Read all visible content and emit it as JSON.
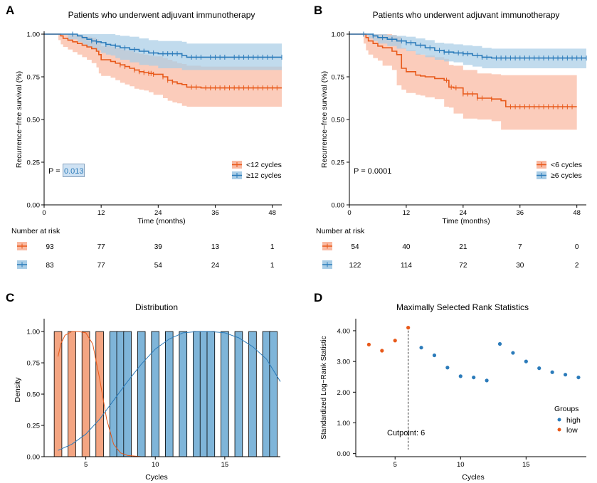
{
  "colors": {
    "orange": "#e8591a",
    "blue": "#2b7bba",
    "orange_band": "#f9b9a1",
    "blue_band": "#a9cde6",
    "overlap_band": "#b7aeb0",
    "orange_bar": "#f4a582",
    "blue_bar": "#7fb5d9",
    "axis": "#000000",
    "highlight_box": "#cfe2f3"
  },
  "chart_data": [
    {
      "id": "A",
      "panel_letter": "A",
      "type": "line",
      "subtype": "kaplan-meier",
      "title": "Patients who underwent adjuvant immunotherapy",
      "xlabel": "Time (months)",
      "ylabel": "Recurrence−free survival (%)",
      "xlim": [
        0,
        50
      ],
      "ylim": [
        0,
        1
      ],
      "xticks": [
        0,
        12,
        24,
        36,
        48
      ],
      "xtick_labels": [
        "0",
        "12",
        "24",
        "36",
        "48"
      ],
      "yticks": [
        0,
        0.25,
        0.5,
        0.75,
        1
      ],
      "ytick_labels": [
        "0.00",
        "0.25",
        "0.50",
        "0.75",
        "1.00"
      ],
      "p_label": "P = ",
      "p_value": "0.013",
      "legend": [
        {
          "label": "<12 cycles",
          "color": "orange"
        },
        {
          "label": "≥12 cycles",
          "color": "blue"
        }
      ],
      "series": [
        {
          "name": "<12 cycles",
          "color": "orange",
          "band": "orange_band",
          "x": [
            0,
            3,
            3.5,
            4,
            5,
            6,
            7,
            8,
            9,
            10,
            11,
            11.5,
            12,
            14,
            15,
            16,
            17,
            18,
            19,
            20,
            21,
            22,
            23,
            25,
            26,
            27,
            28,
            29,
            30,
            33,
            50
          ],
          "y": [
            1,
            1,
            0.99,
            0.975,
            0.965,
            0.955,
            0.945,
            0.935,
            0.925,
            0.915,
            0.9,
            0.88,
            0.85,
            0.84,
            0.83,
            0.82,
            0.81,
            0.8,
            0.79,
            0.78,
            0.775,
            0.77,
            0.765,
            0.75,
            0.73,
            0.72,
            0.71,
            0.705,
            0.69,
            0.685,
            0.685
          ],
          "lower": [
            1,
            1,
            0.965,
            0.94,
            0.925,
            0.91,
            0.895,
            0.88,
            0.865,
            0.85,
            0.83,
            0.805,
            0.77,
            0.755,
            0.745,
            0.73,
            0.715,
            0.705,
            0.695,
            0.68,
            0.675,
            0.67,
            0.66,
            0.645,
            0.625,
            0.61,
            0.6,
            0.595,
            0.58,
            0.575,
            0.575
          ],
          "upper": [
            1,
            1,
            1,
            1,
            1,
            1,
            0.995,
            0.99,
            0.985,
            0.98,
            0.97,
            0.955,
            0.93,
            0.925,
            0.92,
            0.91,
            0.905,
            0.9,
            0.89,
            0.885,
            0.88,
            0.875,
            0.87,
            0.86,
            0.85,
            0.84,
            0.83,
            0.825,
            0.815,
            0.81,
            0.81
          ],
          "censor_x": [
            16,
            17,
            19,
            20,
            21,
            22,
            22.5,
            23,
            25,
            26,
            27,
            31,
            32,
            34,
            35,
            36,
            37,
            38,
            39,
            40,
            41,
            42,
            43,
            44,
            45,
            46,
            47,
            48,
            49
          ]
        },
        {
          "name": "≥12 cycles",
          "color": "blue",
          "band": "blue_band",
          "x": [
            0,
            5,
            7,
            8,
            9,
            10,
            11,
            12,
            13,
            14,
            15,
            16,
            18,
            20,
            22,
            24,
            29,
            30,
            50
          ],
          "y": [
            1,
            1,
            0.99,
            0.98,
            0.97,
            0.96,
            0.955,
            0.95,
            0.94,
            0.935,
            0.93,
            0.92,
            0.91,
            0.9,
            0.89,
            0.885,
            0.875,
            0.865,
            0.865
          ],
          "lower": [
            1,
            1,
            0.97,
            0.955,
            0.94,
            0.925,
            0.915,
            0.905,
            0.89,
            0.88,
            0.875,
            0.86,
            0.85,
            0.835,
            0.82,
            0.815,
            0.8,
            0.79,
            0.79
          ],
          "upper": [
            1,
            1,
            1,
            1,
            1,
            1,
            1,
            1,
            1,
            1,
            0.995,
            0.99,
            0.985,
            0.975,
            0.965,
            0.96,
            0.955,
            0.945,
            0.945
          ],
          "censor_x": [
            6,
            10,
            11,
            13,
            15,
            17,
            19,
            21,
            23,
            25,
            26,
            27,
            28,
            29,
            31,
            32,
            33,
            35,
            36,
            37,
            38,
            40,
            41,
            42,
            43,
            44,
            45,
            46,
            47,
            48,
            50
          ]
        }
      ],
      "risk_table": {
        "title": "Number at risk",
        "times": [
          0,
          12,
          24,
          36,
          48
        ],
        "rows": [
          {
            "color": "orange",
            "values": [
              "93",
              "77",
              "39",
              "13",
              "1"
            ]
          },
          {
            "color": "blue",
            "values": [
              "83",
              "77",
              "54",
              "24",
              "1"
            ]
          }
        ]
      }
    },
    {
      "id": "B",
      "panel_letter": "B",
      "type": "line",
      "subtype": "kaplan-meier",
      "title": "Patients who underwent adjuvant immunotherapy",
      "xlabel": "Time (months)",
      "ylabel": "Recurrence−free survival (%)",
      "xlim": [
        0,
        50
      ],
      "ylim": [
        0,
        1
      ],
      "xticks": [
        0,
        12,
        24,
        36,
        48
      ],
      "xtick_labels": [
        "0",
        "12",
        "24",
        "36",
        "48"
      ],
      "yticks": [
        0,
        0.25,
        0.5,
        0.75,
        1
      ],
      "ytick_labels": [
        "0.00",
        "0.25",
        "0.50",
        "0.75",
        "1.00"
      ],
      "p_label": "P = 0.0001",
      "legend": [
        {
          "label": "<6 cycles",
          "color": "orange"
        },
        {
          "label": "≥6 cycles",
          "color": "blue"
        }
      ],
      "series": [
        {
          "name": "<6 cycles",
          "color": "orange",
          "band": "orange_band",
          "x": [
            0,
            3,
            3.5,
            4,
            5,
            6,
            7,
            9,
            10,
            11,
            12,
            14,
            15,
            16,
            18,
            20,
            21,
            22,
            24,
            27,
            30,
            32,
            33,
            48
          ],
          "y": [
            1,
            1,
            0.98,
            0.96,
            0.945,
            0.93,
            0.92,
            0.9,
            0.88,
            0.8,
            0.78,
            0.76,
            0.755,
            0.75,
            0.74,
            0.73,
            0.69,
            0.685,
            0.65,
            0.625,
            0.62,
            0.61,
            0.575,
            0.575
          ],
          "lower": [
            1,
            1,
            0.945,
            0.905,
            0.88,
            0.86,
            0.845,
            0.815,
            0.79,
            0.7,
            0.675,
            0.655,
            0.645,
            0.64,
            0.63,
            0.62,
            0.575,
            0.57,
            0.535,
            0.505,
            0.5,
            0.49,
            0.44,
            0.44
          ],
          "upper": [
            1,
            1,
            1,
            1,
            1,
            1,
            1,
            0.995,
            0.985,
            0.92,
            0.905,
            0.885,
            0.88,
            0.875,
            0.865,
            0.855,
            0.82,
            0.815,
            0.79,
            0.77,
            0.765,
            0.76,
            0.76,
            0.76
          ],
          "censor_x": [
            20.5,
            21.5,
            22.5,
            24,
            25,
            26,
            27,
            28,
            30,
            34,
            35,
            36,
            37,
            38,
            39,
            40,
            41,
            42,
            43,
            44,
            45,
            46,
            47
          ]
        },
        {
          "name": "≥6 cycles",
          "color": "blue",
          "band": "blue_band",
          "x": [
            0,
            4,
            5,
            6,
            8,
            10,
            12,
            14,
            16,
            18,
            20,
            22,
            24,
            26,
            28,
            30,
            50
          ],
          "y": [
            1,
            1,
            0.99,
            0.98,
            0.97,
            0.96,
            0.95,
            0.935,
            0.92,
            0.905,
            0.895,
            0.89,
            0.885,
            0.875,
            0.865,
            0.86,
            0.86
          ],
          "lower": [
            1,
            1,
            0.975,
            0.96,
            0.945,
            0.93,
            0.915,
            0.9,
            0.88,
            0.865,
            0.85,
            0.84,
            0.835,
            0.82,
            0.81,
            0.8,
            0.8
          ],
          "upper": [
            1,
            1,
            1,
            1,
            0.995,
            0.99,
            0.985,
            0.975,
            0.965,
            0.95,
            0.945,
            0.94,
            0.935,
            0.93,
            0.92,
            0.915,
            0.915
          ],
          "censor_x": [
            3,
            5,
            7,
            9,
            11,
            12,
            13,
            15,
            17,
            19,
            20,
            21,
            23,
            24,
            25,
            27,
            28,
            29,
            31,
            32,
            33,
            34,
            35,
            36,
            37,
            38,
            39,
            40,
            41,
            42,
            43,
            44,
            45,
            46,
            47,
            48,
            49,
            50
          ]
        }
      ],
      "risk_table": {
        "title": "Number at risk",
        "times": [
          0,
          12,
          24,
          36,
          48
        ],
        "rows": [
          {
            "color": "orange",
            "values": [
              "54",
              "40",
              "21",
              "7",
              "0"
            ]
          },
          {
            "color": "blue",
            "values": [
              "122",
              "114",
              "72",
              "30",
              "2"
            ]
          }
        ]
      }
    },
    {
      "id": "C",
      "panel_letter": "C",
      "type": "bar",
      "title": "Distribution",
      "xlabel": "Cycles",
      "ylabel": "Density",
      "xlim": [
        2,
        19
      ],
      "ylim": [
        0,
        1.08
      ],
      "xticks": [
        5,
        10,
        15
      ],
      "xtick_labels": [
        "5",
        "10",
        "15"
      ],
      "yticks": [
        0,
        0.25,
        0.5,
        0.75,
        1
      ],
      "ytick_labels": [
        "0.00",
        "0.25",
        "0.50",
        "0.75",
        "1.00"
      ],
      "bar_width": 0.55,
      "series": [
        {
          "name": "low",
          "color": "orange_bar",
          "x": [
            3,
            4,
            5,
            6
          ],
          "values": [
            1,
            1,
            1,
            1
          ]
        },
        {
          "name": "high",
          "color": "blue_bar",
          "x": [
            7,
            7.5,
            8,
            9,
            10,
            11,
            12,
            13,
            13.5,
            14,
            15,
            16,
            17,
            18,
            18.5
          ],
          "values": [
            1,
            1,
            1,
            1,
            1,
            1,
            1,
            1,
            1,
            1,
            1,
            1,
            1,
            1,
            1
          ]
        }
      ],
      "density_curves": [
        {
          "name": "low",
          "color": "orange",
          "x": [
            3,
            3.2,
            3.5,
            4,
            4.5,
            5,
            5.5,
            6,
            6.5,
            7,
            7.5,
            8,
            9
          ],
          "y": [
            0.8,
            0.9,
            0.97,
            1,
            1,
            0.99,
            0.9,
            0.62,
            0.3,
            0.1,
            0.03,
            0.01,
            0
          ]
        },
        {
          "name": "high",
          "color": "blue",
          "x": [
            3,
            4,
            5,
            6,
            7,
            8,
            9,
            10,
            11,
            12,
            13,
            14,
            15,
            16,
            17,
            18,
            19
          ],
          "y": [
            0.05,
            0.1,
            0.18,
            0.3,
            0.45,
            0.6,
            0.74,
            0.86,
            0.94,
            0.99,
            1,
            1,
            0.99,
            0.95,
            0.88,
            0.78,
            0.6
          ]
        }
      ]
    },
    {
      "id": "D",
      "panel_letter": "D",
      "type": "scatter",
      "title": "Maximally Selected Rank Statistics",
      "xlabel": "Cycles",
      "ylabel": "Standardized Log−Rank Statistic",
      "xlim": [
        2,
        19.6
      ],
      "ylim": [
        -0.1,
        4.3
      ],
      "xticks": [
        5,
        10,
        15
      ],
      "xtick_labels": [
        "5",
        "10",
        "15"
      ],
      "yticks": [
        0,
        1,
        2,
        3,
        4
      ],
      "ytick_labels": [
        "0.00",
        "1.00",
        "2.00",
        "3.00",
        "4.00"
      ],
      "cutpoint": 6,
      "cutpoint_label": "Cutpoint: 6",
      "legend_title": "Groups",
      "legend": [
        {
          "label": "high",
          "color": "blue"
        },
        {
          "label": "low",
          "color": "orange"
        }
      ],
      "series": [
        {
          "name": "low",
          "color": "orange",
          "x": [
            3,
            4,
            5,
            6
          ],
          "y": [
            3.55,
            3.35,
            3.68,
            4.1
          ]
        },
        {
          "name": "high",
          "color": "blue",
          "x": [
            7,
            8,
            9,
            10,
            11,
            12,
            13,
            14,
            15,
            16,
            17,
            18,
            19
          ],
          "y": [
            3.45,
            3.2,
            2.8,
            2.52,
            2.48,
            2.38,
            3.57,
            3.28,
            3.0,
            2.78,
            2.65,
            2.57,
            2.48
          ]
        }
      ]
    }
  ]
}
